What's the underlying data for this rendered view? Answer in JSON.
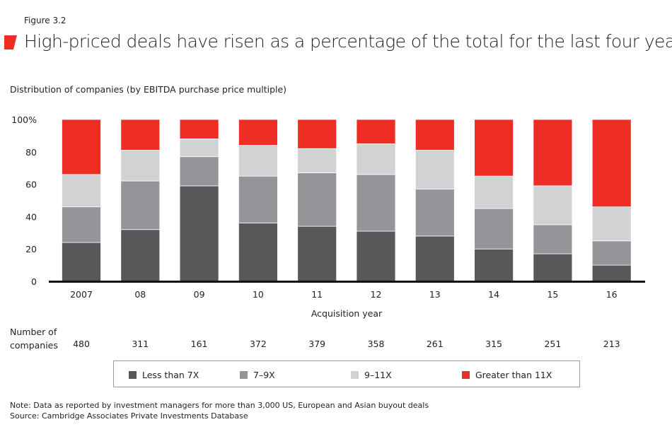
{
  "figure_label": "Figure 3.2",
  "title": "High-priced deals have risen as a percentage of the total for the last four years",
  "note": "Note: Data as reported by investment managers for more than 3,000 US, European and Asian buyout deals",
  "source": "Source: Cambridge Associates Private Investments Database",
  "count_label": [
    "Number of",
    "companies"
  ],
  "chart_data": {
    "type": "bar",
    "stacked": true,
    "title": "High-priced deals have risen as a percentage of the total for the last four years",
    "ylabel": "Distribution of companies (by EBITDA purchase price multiple)",
    "xlabel": "Acquisition year",
    "categories": [
      "2007",
      "08",
      "09",
      "10",
      "11",
      "12",
      "13",
      "14",
      "15",
      "16"
    ],
    "ylim": [
      0,
      100
    ],
    "yticks": [
      "0",
      "20",
      "40",
      "60",
      "80",
      "100%"
    ],
    "ytick_values": [
      0,
      20,
      40,
      60,
      80,
      100
    ],
    "grid": false,
    "legend_position": "bottom",
    "counts": [
      "480",
      "311",
      "161",
      "372",
      "379",
      "358",
      "261",
      "315",
      "251",
      "213"
    ],
    "series": [
      {
        "name": "Less than 7X",
        "color": "#58585a",
        "values": [
          24,
          32,
          59,
          36,
          34,
          31,
          28,
          20,
          17,
          10
        ]
      },
      {
        "name": "7–9X",
        "color": "#949598",
        "values": [
          22,
          30,
          18,
          29,
          33,
          35,
          29,
          25,
          18,
          15
        ]
      },
      {
        "name": "9–11X",
        "color": "#d1d2d3",
        "values": [
          20,
          19,
          11,
          19,
          15,
          19,
          24,
          20,
          24,
          21
        ]
      },
      {
        "name": "Greater than 11X",
        "color": "#ee2e24",
        "values": [
          34,
          19,
          12,
          16,
          18,
          15,
          19,
          35,
          41,
          54
        ]
      }
    ]
  }
}
